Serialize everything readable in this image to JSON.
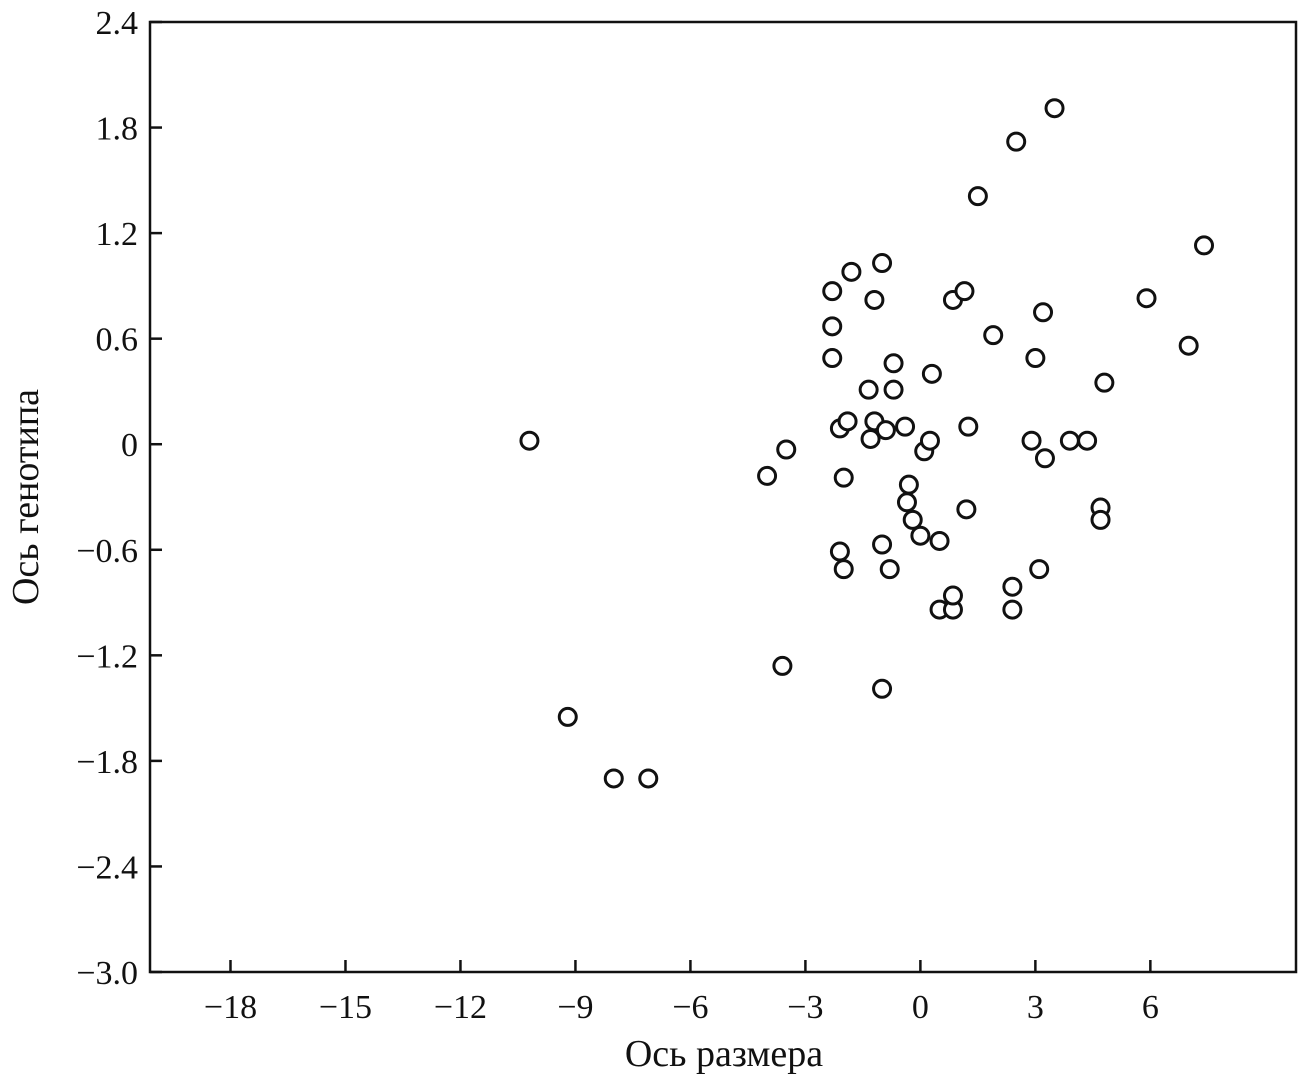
{
  "chart_data": {
    "type": "scatter",
    "title": "",
    "xlabel": "Ось размера",
    "ylabel": "Ось генотипа",
    "xlim": [
      -20.1,
      9.8
    ],
    "ylim": [
      -3.0,
      2.4
    ],
    "grid": false,
    "x_ticks": [
      -18,
      -15,
      -12,
      -9,
      -6,
      -3,
      0,
      3,
      6
    ],
    "x_tick_labels": [
      "−18",
      "−15",
      "−12",
      "−9",
      "−6",
      "−3",
      "0",
      "3",
      "6"
    ],
    "y_ticks": [
      2.4,
      1.8,
      1.2,
      0.6,
      0,
      -0.6,
      -1.2,
      -1.8,
      -2.4,
      -3.0
    ],
    "y_tick_labels": [
      "2.4",
      "1.8",
      "1.2",
      "0.6",
      "0",
      "−0.6",
      "−1.2",
      "−1.8",
      "−2.4",
      "−3.0"
    ],
    "series": [
      {
        "points": [
          [
            -10.2,
            0.02
          ],
          [
            -9.2,
            -1.55
          ],
          [
            -8.0,
            -1.9
          ],
          [
            -7.1,
            -1.9
          ],
          [
            -4.0,
            -0.18
          ],
          [
            -3.5,
            -0.03
          ],
          [
            -3.6,
            -1.26
          ],
          [
            -2.3,
            0.87
          ],
          [
            -2.3,
            0.67
          ],
          [
            -2.3,
            0.49
          ],
          [
            -1.8,
            0.98
          ],
          [
            -1.0,
            1.03
          ],
          [
            -1.2,
            0.82
          ],
          [
            -2.1,
            0.09
          ],
          [
            -1.9,
            0.13
          ],
          [
            -1.3,
            0.03
          ],
          [
            -1.2,
            0.13
          ],
          [
            -0.9,
            0.08
          ],
          [
            -0.4,
            0.1
          ],
          [
            -1.35,
            0.31
          ],
          [
            -0.7,
            0.31
          ],
          [
            -0.7,
            0.46
          ],
          [
            0.3,
            0.4
          ],
          [
            -2.0,
            -0.19
          ],
          [
            -2.1,
            -0.61
          ],
          [
            -2.0,
            -0.71
          ],
          [
            -1.0,
            -0.57
          ],
          [
            -0.8,
            -0.71
          ],
          [
            -1.0,
            -1.39
          ],
          [
            -0.3,
            -0.23
          ],
          [
            -0.35,
            -0.33
          ],
          [
            -0.2,
            -0.43
          ],
          [
            0.0,
            -0.52
          ],
          [
            0.5,
            -0.55
          ],
          [
            0.1,
            -0.04
          ],
          [
            0.25,
            0.02
          ],
          [
            0.5,
            -0.94
          ],
          [
            0.85,
            -0.94
          ],
          [
            0.85,
            -0.86
          ],
          [
            0.85,
            0.82
          ],
          [
            1.15,
            0.87
          ],
          [
            1.25,
            0.1
          ],
          [
            1.2,
            -0.37
          ],
          [
            1.9,
            0.62
          ],
          [
            1.5,
            1.41
          ],
          [
            2.5,
            1.72
          ],
          [
            3.5,
            1.91
          ],
          [
            2.9,
            0.02
          ],
          [
            3.0,
            0.49
          ],
          [
            3.2,
            0.75
          ],
          [
            3.25,
            -0.08
          ],
          [
            3.1,
            -0.71
          ],
          [
            2.4,
            -0.81
          ],
          [
            2.4,
            -0.94
          ],
          [
            3.9,
            0.02
          ],
          [
            4.35,
            0.02
          ],
          [
            4.8,
            0.35
          ],
          [
            4.7,
            -0.36
          ],
          [
            4.7,
            -0.43
          ],
          [
            5.9,
            0.83
          ],
          [
            7.0,
            0.56
          ],
          [
            7.4,
            1.13
          ]
        ]
      }
    ]
  }
}
